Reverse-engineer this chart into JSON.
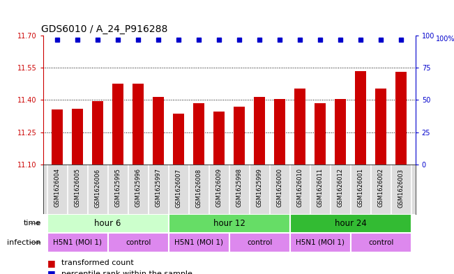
{
  "title": "GDS6010 / A_24_P916288",
  "samples": [
    "GSM1626004",
    "GSM1626005",
    "GSM1626006",
    "GSM1625995",
    "GSM1625996",
    "GSM1625997",
    "GSM1626007",
    "GSM1626008",
    "GSM1626009",
    "GSM1625998",
    "GSM1625999",
    "GSM1626000",
    "GSM1626010",
    "GSM1626011",
    "GSM1626012",
    "GSM1626001",
    "GSM1626002",
    "GSM1626003"
  ],
  "bar_values": [
    11.355,
    11.36,
    11.395,
    11.475,
    11.475,
    11.415,
    11.335,
    11.385,
    11.345,
    11.37,
    11.415,
    11.405,
    11.455,
    11.385,
    11.405,
    11.535,
    11.455,
    11.53
  ],
  "percentile_values": [
    97,
    97,
    97,
    97,
    97,
    97,
    97,
    97,
    97,
    97,
    97,
    97,
    97,
    97,
    97,
    97,
    97,
    97
  ],
  "ylim_left": [
    11.1,
    11.7
  ],
  "ylim_right": [
    0,
    100
  ],
  "yticks_left": [
    11.1,
    11.25,
    11.4,
    11.55,
    11.7
  ],
  "yticks_right": [
    0,
    25,
    50,
    75,
    100
  ],
  "bar_color": "#cc0000",
  "dot_color": "#0000cc",
  "time_labels": [
    "hour 6",
    "hour 12",
    "hour 24"
  ],
  "time_colors": [
    "#ccffcc",
    "#66dd66",
    "#33bb33"
  ],
  "time_edges": [
    0,
    6,
    12,
    18
  ],
  "infection_groups": [
    {
      "label": "H5N1 (MOI 1)",
      "start": 0,
      "end": 3,
      "color": "#dd88ee"
    },
    {
      "label": "control",
      "start": 3,
      "end": 6,
      "color": "#dd88ee"
    },
    {
      "label": "H5N1 (MOI 1)",
      "start": 6,
      "end": 9,
      "color": "#dd88ee"
    },
    {
      "label": "control",
      "start": 9,
      "end": 12,
      "color": "#dd88ee"
    },
    {
      "label": "H5N1 (MOI 1)",
      "start": 12,
      "end": 15,
      "color": "#dd88ee"
    },
    {
      "label": "control",
      "start": 15,
      "end": 18,
      "color": "#dd88ee"
    }
  ],
  "background_color": "#ffffff",
  "sample_bg_color": "#dddddd",
  "label_fontsize": 7,
  "title_fontsize": 10,
  "pct_display_value": 97
}
